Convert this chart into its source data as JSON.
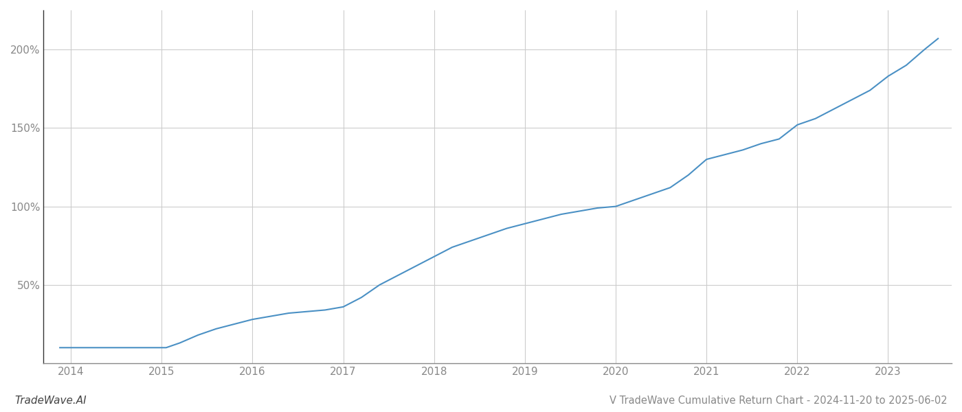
{
  "title": "V TradeWave Cumulative Return Chart - 2024-11-20 to 2025-06-02",
  "watermark": "TradeWave.AI",
  "line_color": "#4a90c4",
  "background_color": "#ffffff",
  "grid_color": "#cccccc",
  "x_years": [
    2014,
    2015,
    2016,
    2017,
    2018,
    2019,
    2020,
    2021,
    2022,
    2023
  ],
  "x_data": [
    2013.88,
    2014.0,
    2014.2,
    2014.4,
    2014.6,
    2014.8,
    2015.0,
    2015.05,
    2015.1,
    2015.2,
    2015.4,
    2015.6,
    2015.8,
    2016.0,
    2016.2,
    2016.4,
    2016.6,
    2016.8,
    2017.0,
    2017.2,
    2017.4,
    2017.6,
    2017.8,
    2018.0,
    2018.2,
    2018.4,
    2018.6,
    2018.8,
    2019.0,
    2019.2,
    2019.4,
    2019.6,
    2019.8,
    2020.0,
    2020.2,
    2020.4,
    2020.6,
    2020.8,
    2021.0,
    2021.2,
    2021.4,
    2021.6,
    2021.8,
    2022.0,
    2022.2,
    2022.4,
    2022.6,
    2022.8,
    2023.0,
    2023.2,
    2023.4,
    2023.55
  ],
  "y_data": [
    10,
    10,
    10,
    10,
    10,
    10,
    10,
    10,
    11,
    13,
    18,
    22,
    25,
    28,
    30,
    32,
    33,
    34,
    36,
    42,
    50,
    56,
    62,
    68,
    74,
    78,
    82,
    86,
    89,
    92,
    95,
    97,
    99,
    100,
    104,
    108,
    112,
    120,
    130,
    133,
    136,
    140,
    143,
    152,
    156,
    162,
    168,
    174,
    183,
    190,
    200,
    207
  ],
  "ylim": [
    0,
    225
  ],
  "yticks": [
    50,
    100,
    150,
    200
  ],
  "ytick_labels": [
    "50%",
    "100%",
    "150%",
    "200%"
  ],
  "xlim": [
    2013.7,
    2023.7
  ],
  "title_fontsize": 10.5,
  "watermark_fontsize": 11,
  "axis_fontsize": 11,
  "line_width": 1.5
}
